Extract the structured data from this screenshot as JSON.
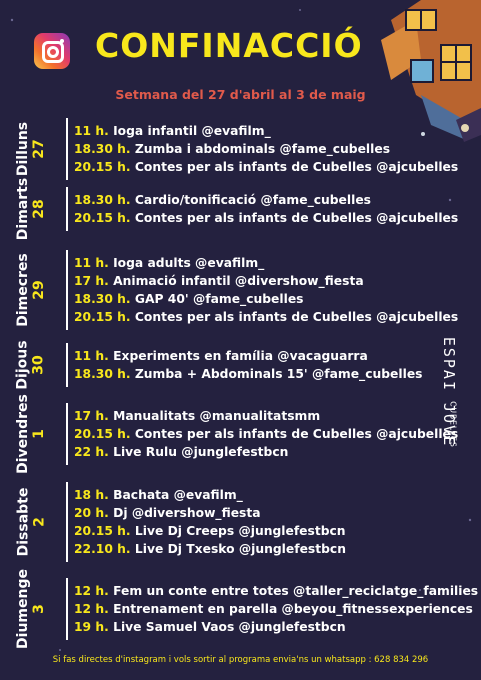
{
  "header": {
    "title": "CONFINACCIÓ",
    "subtitle": "Setmana del 27 d'abril al 3 de maig",
    "instagram_icon": "instagram-icon"
  },
  "brand": {
    "big": "ESPAI JOVE",
    "small": "CUBELLES"
  },
  "colors": {
    "background": "#24213f",
    "accent": "#f8e71c",
    "subtitle": "#e05a4b"
  },
  "days": [
    {
      "name": "Dilluns",
      "num": "27",
      "items": [
        {
          "time": "11 h.",
          "text": " Ioga infantil @evafilm_"
        },
        {
          "time": "18.30 h.",
          "text": " Zumba i abdominals @fame_cubelles"
        },
        {
          "time": "20.15 h.",
          "text": " Contes per als infants de Cubelles @ajcubelles"
        }
      ]
    },
    {
      "name": "Dimarts",
      "num": "28",
      "items": [
        {
          "time": "18.30 h.",
          "text": " Cardio/tonificació @fame_cubelles"
        },
        {
          "time": "20.15 h.",
          "text": " Contes per als infants de Cubelles @ajcubelles"
        }
      ]
    },
    {
      "name": "Dimecres",
      "num": "29",
      "items": [
        {
          "time": "11 h.",
          "text": " Ioga adults @evafilm_"
        },
        {
          "time": "17 h.",
          "text": " Animació infantil @divershow_fiesta"
        },
        {
          "time": "18.30 h.",
          "text": " GAP 40' @fame_cubelles"
        },
        {
          "time": "20.15 h.",
          "text": " Contes per als infants de Cubelles @ajcubelles"
        }
      ]
    },
    {
      "name": "Dijous",
      "num": "30",
      "items": [
        {
          "time": "11 h.",
          "text": " Experiments en família @vacaguarra"
        },
        {
          "time": "18.30 h.",
          "text": " Zumba + Abdominals 15' @fame_cubelles"
        }
      ]
    },
    {
      "name": "Divendres",
      "num": "1",
      "items": [
        {
          "time": "17 h.",
          "text": " Manualitats @manualitatsmm"
        },
        {
          "time": "20.15 h.",
          "text": " Contes per als infants de Cubelles @ajcubelles"
        },
        {
          "time": "22 h.",
          "text": " Live Rulu @junglefestbcn"
        }
      ]
    },
    {
      "name": "Dissabte",
      "num": "2",
      "items": [
        {
          "time": "18 h.",
          "text": " Bachata @evafilm_"
        },
        {
          "time": "20 h.",
          "text": " Dj @divershow_fiesta"
        },
        {
          "time": "20.15 h.",
          "text": " Live Dj Creeps @junglefestbcn"
        },
        {
          "time": "22.10 h.",
          "text": " Live Dj Txesko @junglefestbcn"
        }
      ]
    },
    {
      "name": "Diumenge",
      "num": "3",
      "items": [
        {
          "time": "12 h.",
          "text": " Fem un conte entre totes @taller_reciclatge_families"
        },
        {
          "time": "12 h.",
          "text": " Entrenament en parella @beyou_fitnessexperiences"
        },
        {
          "time": "19 h.",
          "text": " Live Samuel Vaos @junglefestbcn"
        }
      ]
    }
  ],
  "footer": "Si fas directes d'instagram i vols sortir al programa envia'ns un whatsapp : 628 834 296"
}
